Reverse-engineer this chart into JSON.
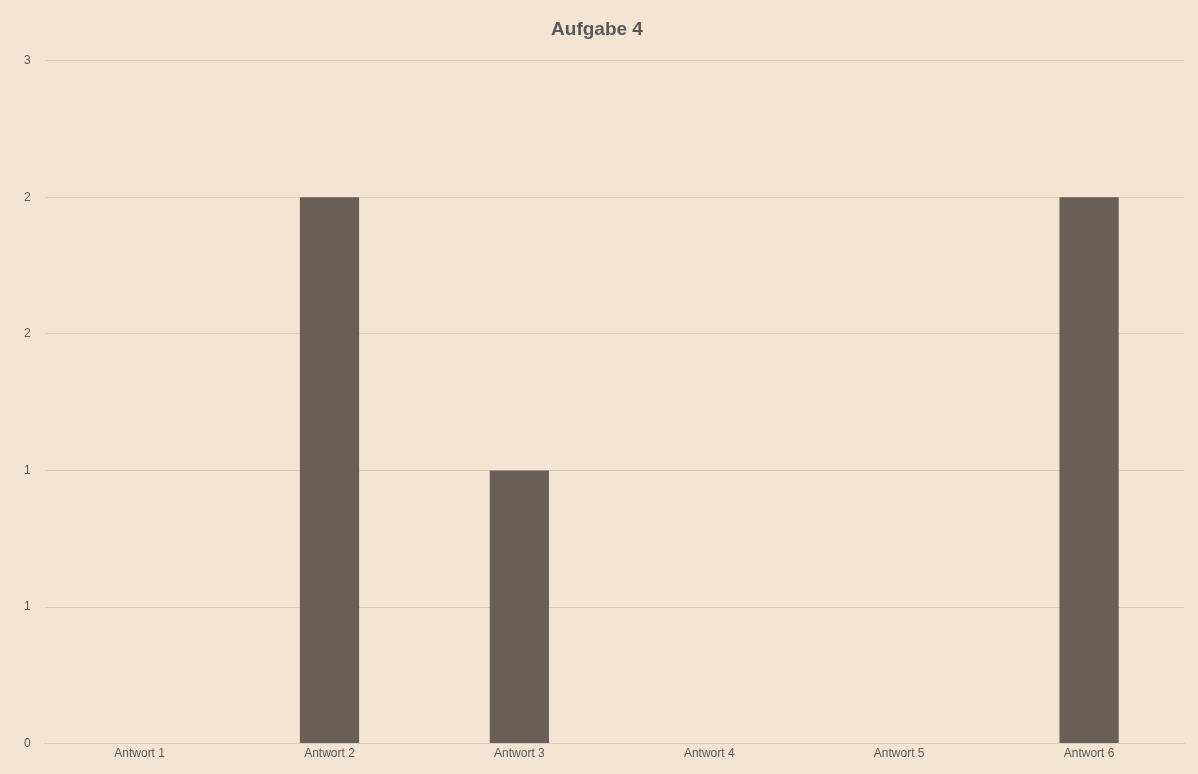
{
  "chart_data": {
    "type": "bar",
    "title": "Aufgabe 4",
    "categories": [
      "Antwort 1",
      "Antwort 2",
      "Antwort 3",
      "Antwort 4",
      "Antwort 5",
      "Antwort 6"
    ],
    "values": [
      0,
      2,
      1,
      0,
      0,
      2
    ],
    "color": "#695f57",
    "ylim": [
      0,
      2.5
    ],
    "yticks": [
      {
        "value": 0,
        "label": "0"
      },
      {
        "value": 0.5,
        "label": "1"
      },
      {
        "value": 1,
        "label": "1"
      },
      {
        "value": 1.5,
        "label": "2"
      },
      {
        "value": 2,
        "label": "2"
      },
      {
        "value": 2.5,
        "label": "3"
      }
    ],
    "grid": "y",
    "legend": false
  }
}
